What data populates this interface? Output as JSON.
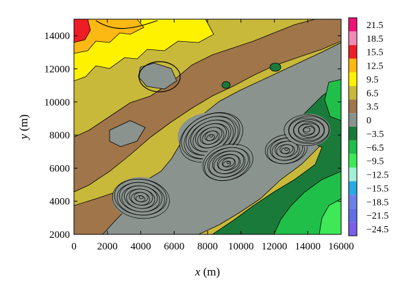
{
  "chart_data": {
    "type": "heatmap",
    "subtype": "filled-contour",
    "title": "",
    "xlabel": {
      "var": "x",
      "unit": " (m)"
    },
    "ylabel": {
      "var": "y",
      "unit": " (m)"
    },
    "xlim": [
      0,
      16000
    ],
    "ylim": [
      2000,
      15000
    ],
    "xticks": [
      0,
      2000,
      4000,
      6000,
      8000,
      10000,
      12000,
      14000,
      16000
    ],
    "yticks": [
      2000,
      4000,
      6000,
      8000,
      10000,
      12000,
      14000
    ],
    "xtick_labels": [
      "0",
      "2000",
      "4000",
      "6000",
      "8000",
      "10000",
      "12000",
      "14000",
      "16000"
    ],
    "ytick_labels": [
      "2000",
      "4000",
      "6000",
      "8000",
      "10000",
      "12000",
      "14000"
    ],
    "grid": false,
    "colorbar": {
      "position": "right",
      "levels": [
        21.5,
        18.5,
        15.5,
        12.5,
        9.5,
        6.5,
        3.5,
        0,
        -3.5,
        -6.5,
        -9.5,
        -12.5,
        -15.5,
        -18.5,
        -21.5,
        -24.5
      ],
      "labels": [
        "21.5",
        "18.5",
        "15.5",
        "12.5",
        "9.5",
        "6.5",
        "3.5",
        "0",
        "−3.5",
        "−6.5",
        "−9.5",
        "−12.5",
        "−15.5",
        "−18.5",
        "−21.5",
        "−24.5"
      ],
      "colors": [
        "#ee1177",
        "#f28ab8",
        "#ee1c24",
        "#fdb913",
        "#fff200",
        "#c8b93a",
        "#a0754a",
        "#8a938e",
        "#1a7a3a",
        "#1fbf4a",
        "#3ee856",
        "#a3f0d8",
        "#27aae1",
        "#6f7fe8",
        "#5f6ee6",
        "#7a5fe6"
      ]
    },
    "regions": {
      "positive_high": {
        "level": 15.5,
        "x": [
          0,
          700
        ],
        "y": [
          13800,
          15000
        ]
      },
      "positive": {
        "description_levels": [
          12.5,
          9.5,
          6.5
        ],
        "area": "north-west"
      },
      "near_zero": {
        "level": 3.5,
        "area": "central diagonal band"
      },
      "negative": {
        "levels": [
          0,
          -3.5,
          -6.5
        ],
        "area": "south-east"
      },
      "strong_gradient_peaks": [
        {
          "x": 8200,
          "y": 7900
        },
        {
          "x": 9200,
          "y": 6300
        },
        {
          "x": 12700,
          "y": 7100
        },
        {
          "x": 14000,
          "y": 8300
        },
        {
          "x": 4000,
          "y": 4200
        }
      ]
    }
  }
}
